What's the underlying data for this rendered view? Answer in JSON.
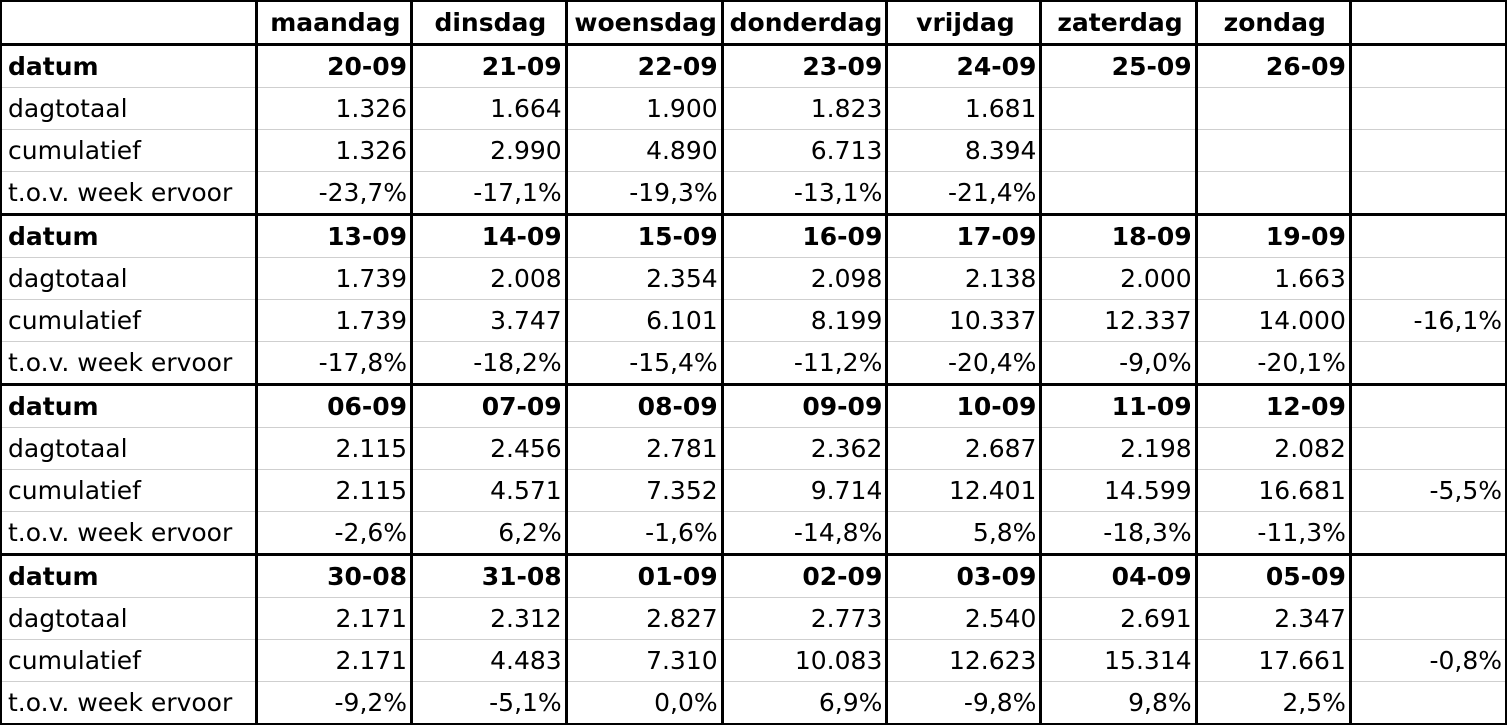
{
  "header": {
    "corner": "",
    "days": [
      "maandag",
      "dinsdag",
      "woensdag",
      "donderdag",
      "vrijdag",
      "zaterdag",
      "zondag"
    ],
    "extra": ""
  },
  "blocks": [
    {
      "rows": [
        {
          "label": "datum",
          "cells": [
            "20-09",
            "21-09",
            "22-09",
            "23-09",
            "24-09",
            "25-09",
            "26-09"
          ],
          "extra": ""
        },
        {
          "label": "dagtotaal",
          "cells": [
            "1.326",
            "1.664",
            "1.900",
            "1.823",
            "1.681",
            "",
            ""
          ],
          "extra": ""
        },
        {
          "label": "cumulatief",
          "cells": [
            "1.326",
            "2.990",
            "4.890",
            "6.713",
            "8.394",
            "",
            ""
          ],
          "extra": ""
        },
        {
          "label": "t.o.v. week ervoor",
          "cells": [
            "-23,7%",
            "-17,1%",
            "-19,3%",
            "-13,1%",
            "-21,4%",
            "",
            ""
          ],
          "extra": ""
        }
      ]
    },
    {
      "rows": [
        {
          "label": "datum",
          "cells": [
            "13-09",
            "14-09",
            "15-09",
            "16-09",
            "17-09",
            "18-09",
            "19-09"
          ],
          "extra": ""
        },
        {
          "label": "dagtotaal",
          "cells": [
            "1.739",
            "2.008",
            "2.354",
            "2.098",
            "2.138",
            "2.000",
            "1.663"
          ],
          "extra": ""
        },
        {
          "label": "cumulatief",
          "cells": [
            "1.739",
            "3.747",
            "6.101",
            "8.199",
            "10.337",
            "12.337",
            "14.000"
          ],
          "extra": "-16,1%"
        },
        {
          "label": "t.o.v. week ervoor",
          "cells": [
            "-17,8%",
            "-18,2%",
            "-15,4%",
            "-11,2%",
            "-20,4%",
            "-9,0%",
            "-20,1%"
          ],
          "extra": ""
        }
      ]
    },
    {
      "rows": [
        {
          "label": "datum",
          "cells": [
            "06-09",
            "07-09",
            "08-09",
            "09-09",
            "10-09",
            "11-09",
            "12-09"
          ],
          "extra": ""
        },
        {
          "label": "dagtotaal",
          "cells": [
            "2.115",
            "2.456",
            "2.781",
            "2.362",
            "2.687",
            "2.198",
            "2.082"
          ],
          "extra": ""
        },
        {
          "label": "cumulatief",
          "cells": [
            "2.115",
            "4.571",
            "7.352",
            "9.714",
            "12.401",
            "14.599",
            "16.681"
          ],
          "extra": "-5,5%"
        },
        {
          "label": "t.o.v. week ervoor",
          "cells": [
            "-2,6%",
            "6,2%",
            "-1,6%",
            "-14,8%",
            "5,8%",
            "-18,3%",
            "-11,3%"
          ],
          "extra": ""
        }
      ]
    },
    {
      "rows": [
        {
          "label": "datum",
          "cells": [
            "30-08",
            "31-08",
            "01-09",
            "02-09",
            "03-09",
            "04-09",
            "05-09"
          ],
          "extra": ""
        },
        {
          "label": "dagtotaal",
          "cells": [
            "2.171",
            "2.312",
            "2.827",
            "2.773",
            "2.540",
            "2.691",
            "2.347"
          ],
          "extra": ""
        },
        {
          "label": "cumulatief",
          "cells": [
            "2.171",
            "4.483",
            "7.310",
            "10.083",
            "12.623",
            "15.314",
            "17.661"
          ],
          "extra": "-0,8%"
        },
        {
          "label": "t.o.v. week ervoor",
          "cells": [
            "-9,2%",
            "-5,1%",
            "0,0%",
            "6,9%",
            "-9,8%",
            "9,8%",
            "2,5%"
          ],
          "extra": ""
        }
      ]
    }
  ]
}
